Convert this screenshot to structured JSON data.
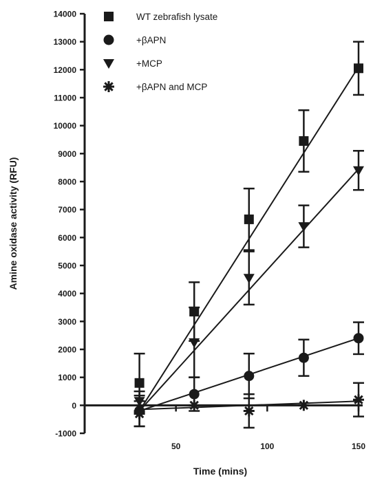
{
  "chart_data": {
    "type": "line",
    "xlabel": "Time (mins)",
    "ylabel": "Amine oxidase activity (RFU)",
    "xlim": [
      0,
      150
    ],
    "ylim": [
      -1000,
      14000
    ],
    "xticks": [
      50,
      100,
      150
    ],
    "yticks": [
      -1000,
      0,
      1000,
      2000,
      3000,
      4000,
      5000,
      6000,
      7000,
      8000,
      9000,
      10000,
      11000,
      12000,
      13000,
      14000
    ],
    "xtick_labels": [
      "50",
      "100",
      "150"
    ],
    "ytick_labels": [
      "-1000",
      "0",
      "1000",
      "2000",
      "3000",
      "4000",
      "5000",
      "6000",
      "7000",
      "8000",
      "9000",
      "10000",
      "11000",
      "12000",
      "13000",
      "14000"
    ],
    "grid": false,
    "legend_position": "top-left",
    "series": [
      {
        "name": "WT zebrafish lysate",
        "marker": "square",
        "color": "#1a1a1a",
        "x": [
          30,
          60,
          90,
          120,
          150
        ],
        "y": [
          800,
          3350,
          6650,
          9450,
          12050
        ],
        "err": [
          1050,
          1050,
          1100,
          1100,
          950
        ],
        "fit": [
          [
            30,
            -200
          ],
          [
            150,
            12100
          ]
        ]
      },
      {
        "name": "+βAPN",
        "marker": "circle",
        "color": "#1a1a1a",
        "x": [
          30,
          60,
          90,
          120,
          150
        ],
        "y": [
          -200,
          400,
          1050,
          1700,
          2400
        ],
        "err": [
          550,
          600,
          800,
          650,
          570
        ],
        "fit": [
          [
            30,
            -200
          ],
          [
            150,
            2400
          ]
        ]
      },
      {
        "name": "+MCP",
        "marker": "triangle-down",
        "color": "#1a1a1a",
        "x": [
          30,
          60,
          90,
          120,
          150
        ],
        "y": [
          150,
          2250,
          4550,
          6400,
          8400
        ],
        "err": [
          350,
          1250,
          950,
          750,
          700
        ],
        "fit": [
          [
            30,
            -200
          ],
          [
            150,
            8450
          ]
        ]
      },
      {
        "name": "+βAPN and MCP",
        "marker": "asterisk",
        "color": "#1a1a1a",
        "x": [
          30,
          60,
          90,
          120,
          150
        ],
        "y": [
          -300,
          0,
          -200,
          0,
          200
        ],
        "err": [
          450,
          0,
          600,
          0,
          600
        ],
        "fit": [
          [
            30,
            -150
          ],
          [
            150,
            150
          ]
        ]
      }
    ]
  }
}
